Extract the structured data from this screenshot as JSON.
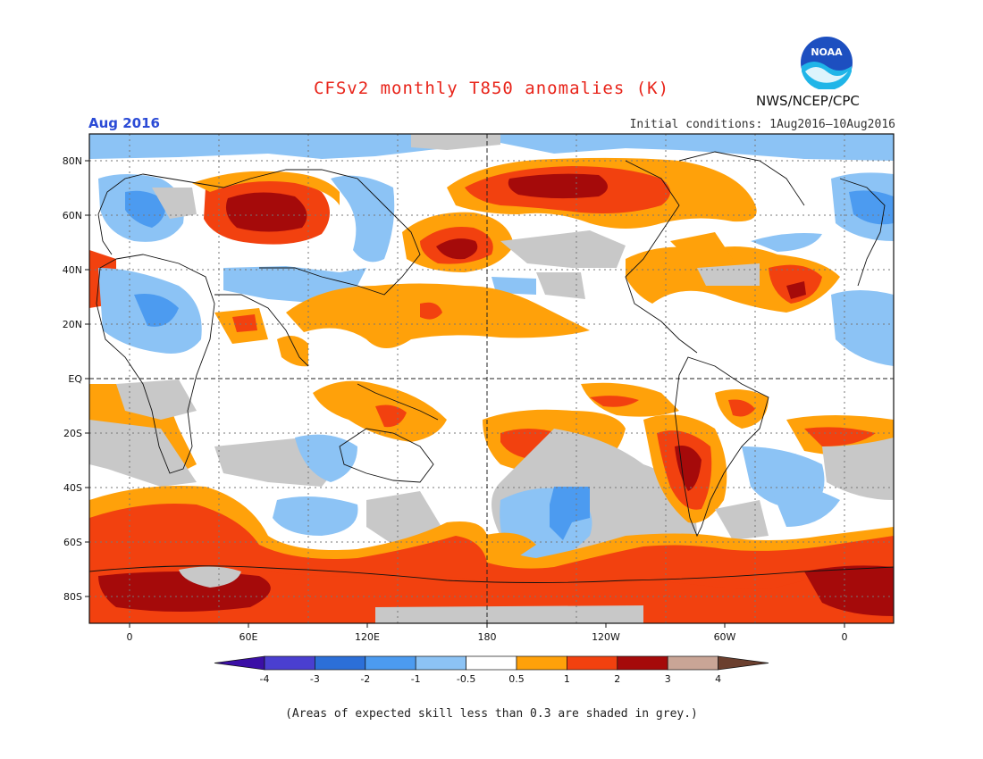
{
  "header": {
    "title": "CFSv2 monthly T850 anomalies (K)",
    "month": "Aug 2016",
    "initial_conditions": "Initial conditions: 1Aug2016–10Aug2016",
    "agency": "NWS/NCEP/CPC",
    "logo_text": "NOAA"
  },
  "map": {
    "lat_labels": [
      "80N",
      "60N",
      "40N",
      "20N",
      "EQ",
      "20S",
      "40S",
      "60S",
      "80S"
    ],
    "lon_labels": [
      "0",
      "60E",
      "120E",
      "180",
      "120W",
      "60W",
      "0"
    ]
  },
  "legend": {
    "labels": [
      "-4",
      "-3",
      "-2",
      "-1",
      "-0.5",
      "0.5",
      "1",
      "2",
      "3",
      "4"
    ],
    "colors": [
      "#3b0fa6",
      "#4a3fd0",
      "#2c6fd8",
      "#4c9bf0",
      "#8cc3f5",
      "#ffffff",
      "#ffa10a",
      "#f2410f",
      "#a50a0a",
      "#c9a596",
      "#6b3f2e"
    ]
  },
  "colors": {
    "grey_low_skill": "#c8c8c8",
    "title": "#e8241a",
    "month": "#2b4bd6"
  },
  "caption": "(Areas of expected skill less than 0.3 are shaded in grey.)"
}
